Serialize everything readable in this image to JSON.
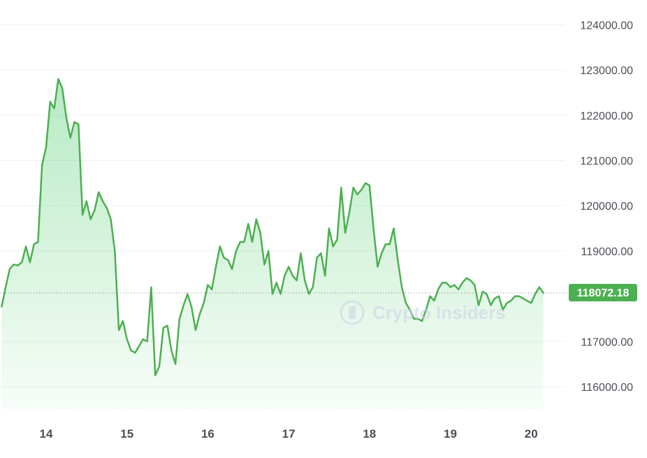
{
  "chart_data": {
    "type": "area",
    "title": "",
    "xlabel": "",
    "ylabel": "",
    "x_tick_labels": [
      "14",
      "15",
      "16",
      "17",
      "18",
      "19",
      "20"
    ],
    "x_tick_days": [
      14,
      15,
      16,
      17,
      18,
      19,
      20
    ],
    "y_tick_labels": [
      "124000.00",
      "123000.00",
      "122000.00",
      "121000.00",
      "120000.00",
      "119000.00",
      "117000.00",
      "116000.00"
    ],
    "y_tick_values": [
      124000,
      123000,
      122000,
      121000,
      120000,
      119000,
      117000,
      116000
    ],
    "xlim": [
      13.45,
      20.42
    ],
    "ylim": [
      115500,
      124500
    ],
    "grid": true,
    "line_color": "#4caf50",
    "fill_color": "#5fd17a",
    "current_price": 118072.18,
    "current_price_label": "118072.18",
    "watermark": "Crypto Insiders",
    "series": [
      {
        "values": [
          [
            13.45,
            117770
          ],
          [
            13.5,
            118200
          ],
          [
            13.55,
            118600
          ],
          [
            13.6,
            118700
          ],
          [
            13.65,
            118680
          ],
          [
            13.7,
            118750
          ],
          [
            13.75,
            119100
          ],
          [
            13.8,
            118750
          ],
          [
            13.85,
            119150
          ],
          [
            13.9,
            119200
          ],
          [
            13.95,
            120900
          ],
          [
            14.0,
            121300
          ],
          [
            14.05,
            122300
          ],
          [
            14.1,
            122150
          ],
          [
            14.15,
            122800
          ],
          [
            14.2,
            122600
          ],
          [
            14.25,
            121950
          ],
          [
            14.3,
            121500
          ],
          [
            14.35,
            121850
          ],
          [
            14.4,
            121800
          ],
          [
            14.45,
            119800
          ],
          [
            14.5,
            120100
          ],
          [
            14.55,
            119700
          ],
          [
            14.6,
            119900
          ],
          [
            14.65,
            120300
          ],
          [
            14.7,
            120100
          ],
          [
            14.75,
            119950
          ],
          [
            14.8,
            119700
          ],
          [
            14.85,
            119000
          ],
          [
            14.9,
            117250
          ],
          [
            14.95,
            117450
          ],
          [
            15.0,
            117050
          ],
          [
            15.05,
            116800
          ],
          [
            15.1,
            116750
          ],
          [
            15.15,
            116900
          ],
          [
            15.2,
            117050
          ],
          [
            15.25,
            117000
          ],
          [
            15.3,
            118200
          ],
          [
            15.35,
            116250
          ],
          [
            15.4,
            116450
          ],
          [
            15.45,
            117300
          ],
          [
            15.5,
            117350
          ],
          [
            15.55,
            116800
          ],
          [
            15.6,
            116500
          ],
          [
            15.65,
            117500
          ],
          [
            15.7,
            117800
          ],
          [
            15.75,
            118050
          ],
          [
            15.8,
            117750
          ],
          [
            15.85,
            117250
          ],
          [
            15.9,
            117600
          ],
          [
            15.95,
            117850
          ],
          [
            16.0,
            118250
          ],
          [
            16.05,
            118150
          ],
          [
            16.1,
            118650
          ],
          [
            16.15,
            119100
          ],
          [
            16.2,
            118850
          ],
          [
            16.25,
            118800
          ],
          [
            16.3,
            118600
          ],
          [
            16.35,
            119000
          ],
          [
            16.4,
            119200
          ],
          [
            16.45,
            119200
          ],
          [
            16.5,
            119600
          ],
          [
            16.55,
            119200
          ],
          [
            16.6,
            119700
          ],
          [
            16.65,
            119400
          ],
          [
            16.7,
            118700
          ],
          [
            16.75,
            119000
          ],
          [
            16.8,
            118050
          ],
          [
            16.85,
            118300
          ],
          [
            16.9,
            118050
          ],
          [
            16.95,
            118450
          ],
          [
            17.0,
            118650
          ],
          [
            17.05,
            118450
          ],
          [
            17.1,
            118350
          ],
          [
            17.15,
            118950
          ],
          [
            17.2,
            118350
          ],
          [
            17.25,
            118050
          ],
          [
            17.3,
            118200
          ],
          [
            17.35,
            118850
          ],
          [
            17.4,
            118950
          ],
          [
            17.45,
            118450
          ],
          [
            17.5,
            119500
          ],
          [
            17.55,
            119100
          ],
          [
            17.6,
            119250
          ],
          [
            17.65,
            120400
          ],
          [
            17.7,
            119400
          ],
          [
            17.75,
            119850
          ],
          [
            17.8,
            120400
          ],
          [
            17.85,
            120250
          ],
          [
            17.9,
            120350
          ],
          [
            17.95,
            120500
          ],
          [
            18.0,
            120450
          ],
          [
            18.05,
            119500
          ],
          [
            18.1,
            118650
          ],
          [
            18.15,
            118950
          ],
          [
            18.2,
            119150
          ],
          [
            18.25,
            119150
          ],
          [
            18.3,
            119500
          ],
          [
            18.35,
            118800
          ],
          [
            18.4,
            118200
          ],
          [
            18.45,
            117850
          ],
          [
            18.5,
            117700
          ],
          [
            18.55,
            117500
          ],
          [
            18.6,
            117500
          ],
          [
            18.65,
            117450
          ],
          [
            18.7,
            117700
          ],
          [
            18.75,
            118000
          ],
          [
            18.8,
            117900
          ],
          [
            18.85,
            118150
          ],
          [
            18.9,
            118300
          ],
          [
            18.95,
            118300
          ],
          [
            19.0,
            118200
          ],
          [
            19.05,
            118250
          ],
          [
            19.1,
            118150
          ],
          [
            19.15,
            118300
          ],
          [
            19.2,
            118400
          ],
          [
            19.25,
            118350
          ],
          [
            19.3,
            118250
          ],
          [
            19.35,
            117800
          ],
          [
            19.4,
            118100
          ],
          [
            19.45,
            118050
          ],
          [
            19.5,
            117800
          ],
          [
            19.55,
            117950
          ],
          [
            19.6,
            118000
          ],
          [
            19.65,
            117700
          ],
          [
            19.7,
            117850
          ],
          [
            19.75,
            117900
          ],
          [
            19.8,
            118000
          ],
          [
            19.85,
            118000
          ],
          [
            19.9,
            117950
          ],
          [
            19.95,
            117900
          ],
          [
            20.0,
            117850
          ],
          [
            20.05,
            118050
          ],
          [
            20.1,
            118200
          ],
          [
            20.15,
            118072
          ]
        ]
      }
    ]
  }
}
